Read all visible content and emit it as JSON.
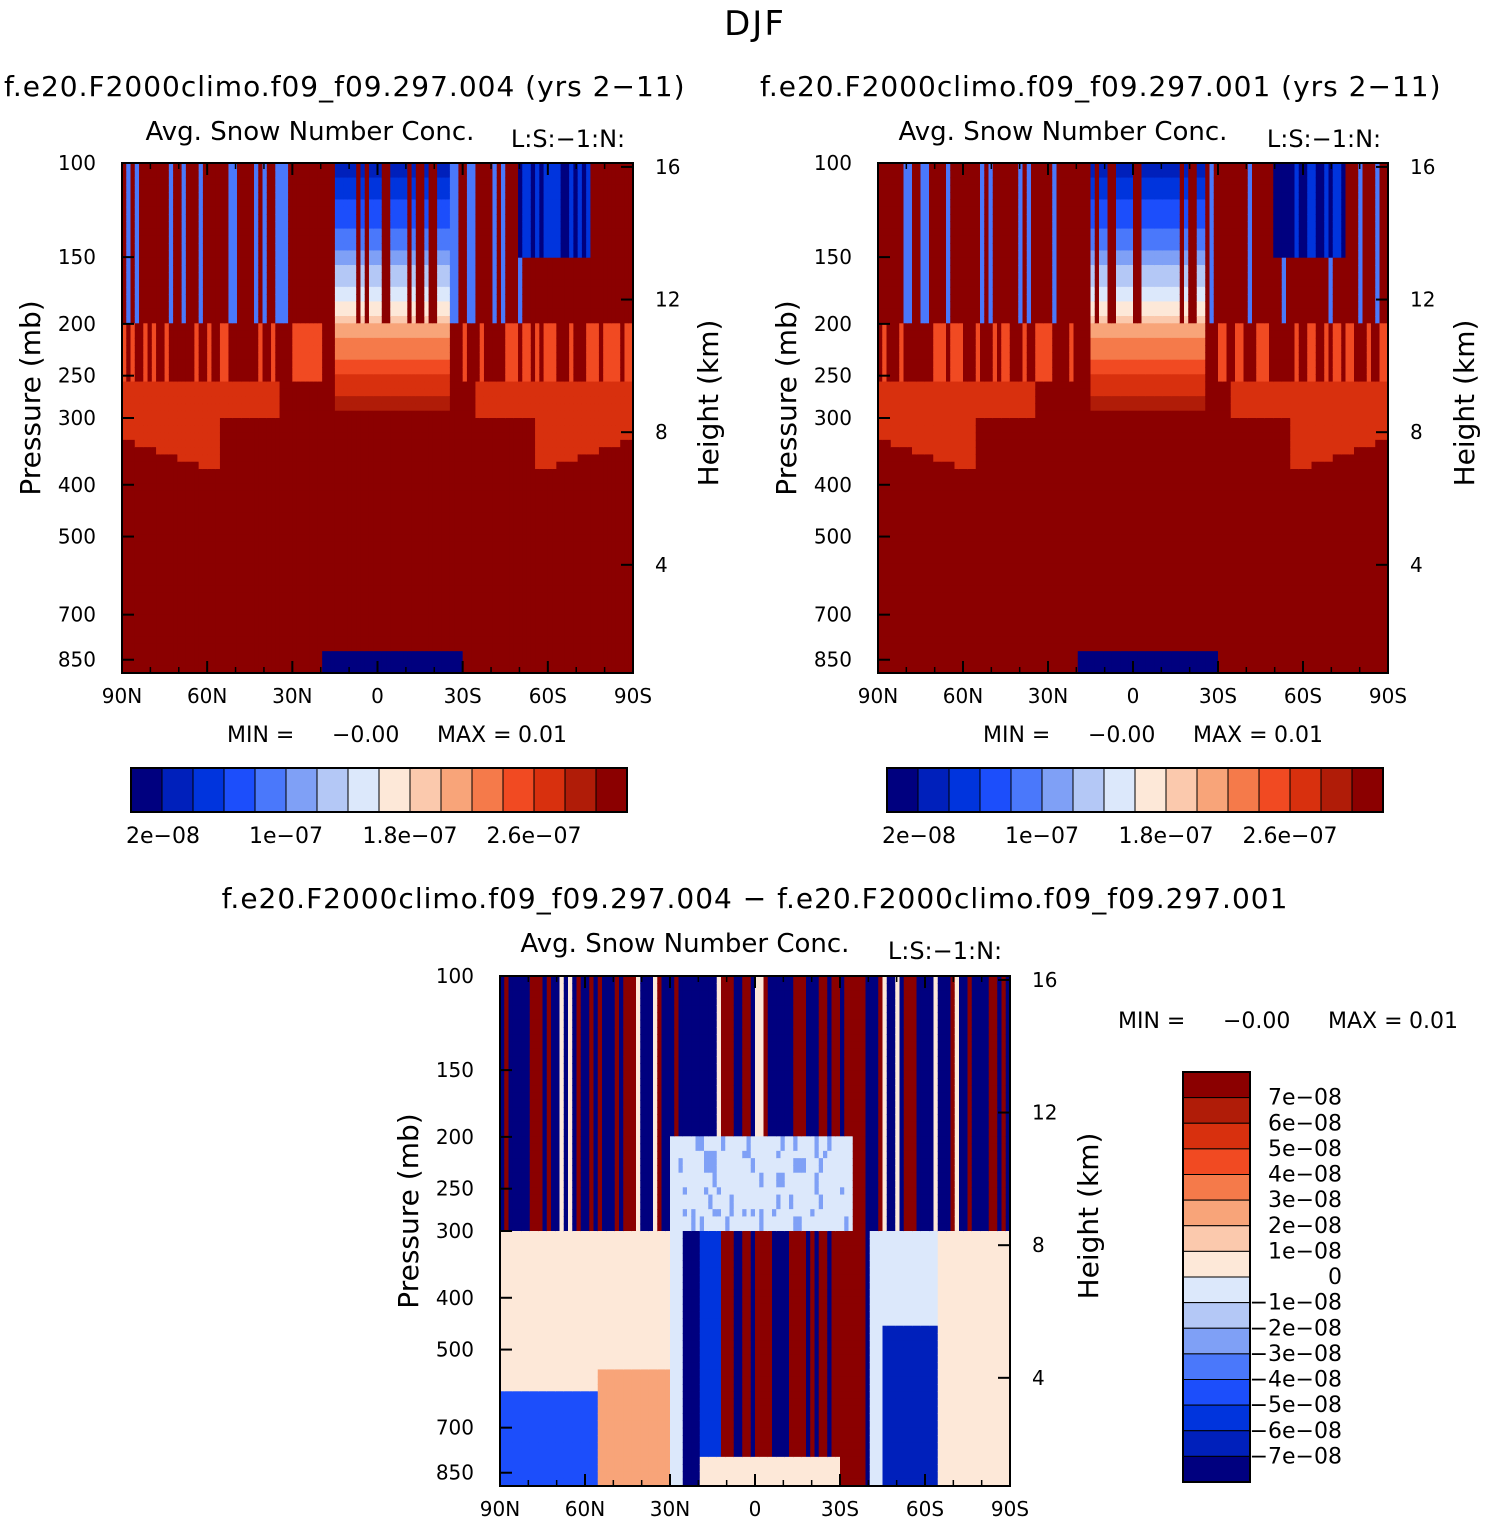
{
  "page": {
    "title": "DJF",
    "bottom_title": "f.e20.F2000climo.f09_f09.297.004 − f.e20.F2000climo.f09_f09.297.001"
  },
  "panels": [
    {
      "case_title": "f.e20.F2000climo.f09_f09.297.004 (yrs 2−11)",
      "variable": "Avg. Snow Number Conc.",
      "level_note": "L:S:−1:N:",
      "ylabel": "Pressure (mb)",
      "ylabel_right": "Height (km)",
      "minmax": {
        "min_label": "MIN =",
        "min": "−0.00",
        "max_label": "MAX =",
        "max": "0.01"
      },
      "colorbar_labels": [
        "2e−08",
        "1e−07",
        "1.8e−07",
        "2.6e−07"
      ]
    },
    {
      "case_title": "f.e20.F2000climo.f09_f09.297.001 (yrs 2−11)",
      "variable": "Avg. Snow Number Conc.",
      "level_note": "L:S:−1:N:",
      "ylabel": "Pressure (mb)",
      "ylabel_right": "Height (km)",
      "minmax": {
        "min_label": "MIN =",
        "min": "−0.00",
        "max_label": "MAX =",
        "max": "0.01"
      },
      "colorbar_labels": [
        "2e−08",
        "1e−07",
        "1.8e−07",
        "2.6e−07"
      ]
    },
    {
      "case_title": "",
      "variable": "Avg. Snow Number Conc.",
      "level_note": "L:S:−1:N:",
      "ylabel": "Pressure (mb)",
      "ylabel_right": "Height (km)",
      "minmax": {
        "min_label": "MIN =",
        "min": "−0.00",
        "max_label": "MAX =",
        "max": "0.01"
      },
      "colorbar_labels": [
        "7e−08",
        "6e−08",
        "5e−08",
        "4e−08",
        "3e−08",
        "2e−08",
        "1e−08",
        "0",
        "−1e−08",
        "−2e−08",
        "−3e−08",
        "−4e−08",
        "−5e−08",
        "−6e−08",
        "−7e−08"
      ]
    }
  ],
  "chart_data": [
    {
      "type": "heatmap",
      "title": "Avg. Snow Number Conc.",
      "xlabel": "",
      "ylabel": "Pressure (mb)",
      "ylabel_right": "Height (km)",
      "x_ticks": [
        "90N",
        "60N",
        "30N",
        "0",
        "30S",
        "60S",
        "90S"
      ],
      "x_range": [
        90,
        -90
      ],
      "y_ticks": [
        100,
        150,
        200,
        250,
        300,
        400,
        500,
        700,
        850
      ],
      "y_range": [
        100,
        900
      ],
      "y_scale": "log",
      "y_right_ticks": [
        16,
        12,
        8,
        4
      ],
      "colorbar_min": 2e-08,
      "colorbar_step": 2e-08,
      "colorbar_levels": 16,
      "colors": [
        "#00007f",
        "#0020bb",
        "#0034dd",
        "#1c4efb",
        "#4a78fb",
        "#7fa0f6",
        "#b4c8f6",
        "#dce8fb",
        "#fde8d8",
        "#fbc9ad",
        "#f8a479",
        "#f57a4a",
        "#f14a22",
        "#d8300e",
        "#b01c08",
        "#8b0000"
      ],
      "summary": "Predominantly maximum values (dark red) below ~250 mb across all latitudes; low values (blue) in the tropical upper troposphere 100-200 mb between ~10N and ~30S; a low-value (dark blue) patch near 850 mb between ~20N and ~30S."
    },
    {
      "type": "heatmap",
      "title": "Avg. Snow Number Conc.",
      "xlabel": "",
      "ylabel": "Pressure (mb)",
      "ylabel_right": "Height (km)",
      "x_ticks": [
        "90N",
        "60N",
        "30N",
        "0",
        "30S",
        "60S",
        "90S"
      ],
      "x_range": [
        90,
        -90
      ],
      "y_ticks": [
        100,
        150,
        200,
        250,
        300,
        400,
        500,
        700,
        850
      ],
      "y_range": [
        100,
        900
      ],
      "y_scale": "log",
      "y_right_ticks": [
        16,
        12,
        8,
        4
      ],
      "colorbar_min": 2e-08,
      "colorbar_step": 2e-08,
      "colorbar_levels": 16,
      "colors": [
        "#00007f",
        "#0020bb",
        "#0034dd",
        "#1c4efb",
        "#4a78fb",
        "#7fa0f6",
        "#b4c8f6",
        "#dce8fb",
        "#fde8d8",
        "#fbc9ad",
        "#f8a479",
        "#f57a4a",
        "#f14a22",
        "#d8300e",
        "#b01c08",
        "#8b0000"
      ],
      "summary": "Nearly identical structure to the first case: maximum values below ~250 mb, blue low-value region in the tropical upper troposphere, low-value patch near 850 mb in the tropics."
    },
    {
      "type": "heatmap",
      "title": "Avg. Snow Number Conc.",
      "xlabel": "",
      "ylabel": "Pressure (mb)",
      "ylabel_right": "Height (km)",
      "x_ticks": [
        "90N",
        "60N",
        "30N",
        "0",
        "30S",
        "60S",
        "90S"
      ],
      "x_range": [
        90,
        -90
      ],
      "y_ticks": [
        100,
        150,
        200,
        250,
        300,
        400,
        500,
        700,
        850
      ],
      "y_range": [
        100,
        900
      ],
      "y_scale": "log",
      "y_right_ticks": [
        16,
        12,
        8,
        4
      ],
      "colorbar_min": -7e-08,
      "colorbar_max": 7e-08,
      "colorbar_step": 1e-08,
      "colors": [
        "#00007f",
        "#0020bb",
        "#0034dd",
        "#1c4efb",
        "#4a78fb",
        "#7fa0f6",
        "#b4c8f6",
        "#dce8fb",
        "#fde8d8",
        "#fbc9ad",
        "#f8a479",
        "#f57a4a",
        "#f14a22",
        "#d8300e",
        "#b01c08",
        "#8b0000"
      ],
      "summary": "Difference field: alternating strong positive (dark red) and negative (dark blue) streaks from 100 to 300 mb at all latitudes; strong positive/negative bands in the tropics 300-850 mb; near-zero light shades elsewhere."
    }
  ]
}
